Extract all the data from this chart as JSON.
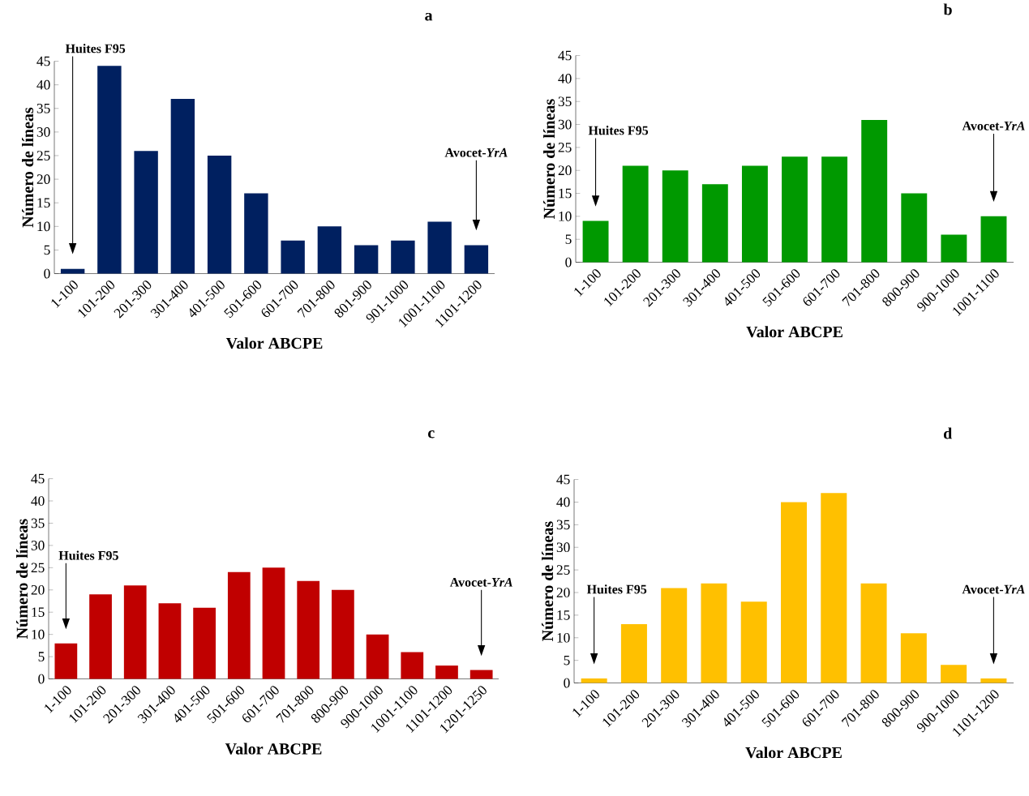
{
  "chart_data": [
    {
      "type": "bar",
      "title": "a",
      "xlabel": "Valor ABCPE",
      "ylabel": "Número de líneas",
      "color": "#002060",
      "categories": [
        "1-100",
        "101-200",
        "201-300",
        "301-400",
        "401-500",
        "501-600",
        "601-700",
        "701-800",
        "801-900",
        "901-1000",
        "1001-1100",
        "1101-1200"
      ],
      "values": [
        1,
        44,
        26,
        37,
        25,
        17,
        7,
        10,
        6,
        7,
        11,
        6
      ],
      "ylim": [
        0,
        45
      ],
      "yticks": [
        0,
        5,
        10,
        15,
        20,
        25,
        30,
        35,
        40,
        45
      ],
      "annotations": [
        "Huites F95",
        "Avocet-*YrA*"
      ]
    },
    {
      "type": "bar",
      "title": "b",
      "xlabel": "Valor ABCPE",
      "ylabel": "Número de líneas",
      "color": "#009900",
      "categories": [
        "1-100",
        "101-200",
        "201-300",
        "301-400",
        "401-500",
        "501-600",
        "601-700",
        "701-800",
        "800-900",
        "900-1000",
        "1001-1100"
      ],
      "values": [
        9,
        21,
        20,
        17,
        21,
        23,
        23,
        31,
        15,
        6,
        10
      ],
      "ylim": [
        0,
        45
      ],
      "yticks": [
        0,
        5,
        10,
        15,
        20,
        25,
        30,
        35,
        40,
        45
      ],
      "annotations": [
        "Huites F95",
        "Avocet-*YrA*"
      ]
    },
    {
      "type": "bar",
      "title": "c",
      "xlabel": "Valor ABCPE",
      "ylabel": "Número de líneas",
      "color": "#c00000",
      "categories": [
        "1-100",
        "101-200",
        "201-300",
        "301-400",
        "401-500",
        "501-600",
        "601-700",
        "701-800",
        "800-900",
        "900-1000",
        "1001-1100",
        "1101-1200",
        "1201-1250"
      ],
      "values": [
        8,
        19,
        21,
        17,
        16,
        24,
        25,
        22,
        20,
        10,
        6,
        3,
        2
      ],
      "ylim": [
        0,
        45
      ],
      "yticks": [
        0,
        5,
        10,
        15,
        20,
        25,
        30,
        35,
        40,
        45
      ],
      "annotations": [
        "Huites F95",
        "Avocet-*YrA*"
      ]
    },
    {
      "type": "bar",
      "title": "d",
      "xlabel": "Valor ABCPE",
      "ylabel": "Número de líneas",
      "color": "#ffc000",
      "categories": [
        "1-100",
        "101-200",
        "201-300",
        "301-400",
        "401-500",
        "501-600",
        "601-700",
        "701-800",
        "800-900",
        "900-1000",
        "1101-1200"
      ],
      "values": [
        1,
        13,
        21,
        22,
        18,
        40,
        42,
        22,
        11,
        4,
        1
      ],
      "ylim": [
        0,
        45
      ],
      "yticks": [
        0,
        5,
        10,
        15,
        20,
        25,
        30,
        35,
        40,
        45
      ],
      "annotations": [
        "Huites F95",
        "Avocet-*YrA*"
      ]
    }
  ]
}
